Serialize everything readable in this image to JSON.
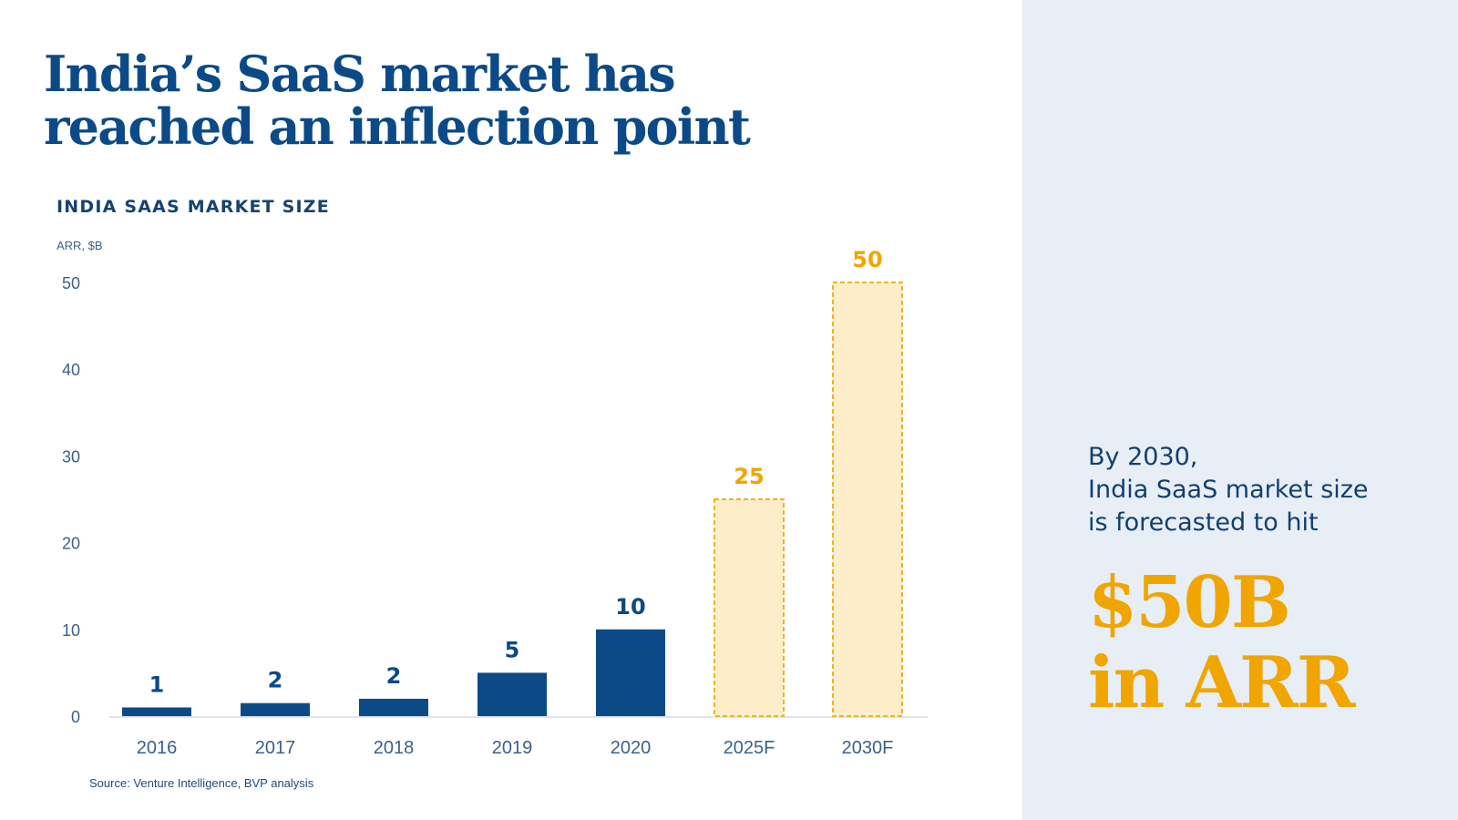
{
  "headline": {
    "line1": "India’s SaaS market has",
    "line2": "reached an inflection point"
  },
  "chart_title": "INDIA SAAS MARKET SIZE",
  "source": "Source: Venture Intelligence, BVP analysis",
  "callout": {
    "line1": "By 2030,",
    "line2": "India SaaS market size",
    "line3": "is forecasted to hit",
    "big1": "$50B",
    "big2": "in ARR"
  },
  "colors": {
    "actual_bar": "#0b4a87",
    "forecast_fill": "#fdeec9",
    "forecast_stroke": "#f2b21e",
    "forecast_label": "#f0a500",
    "axis_text": "#3a6189",
    "panel_bg": "#e8eef6"
  },
  "chart_data": {
    "type": "bar",
    "ylabel": "ARR, $B",
    "xlabel": "",
    "ylim": [
      0,
      50
    ],
    "yticks": [
      0,
      10,
      20,
      30,
      40,
      50
    ],
    "grid": false,
    "categories": [
      "2016",
      "2017",
      "2018",
      "2019",
      "2020",
      "2025F",
      "2030F"
    ],
    "values": [
      1,
      1.5,
      2,
      5,
      10,
      25,
      50
    ],
    "data_labels": [
      "1",
      "2",
      "2",
      "5",
      "10",
      "25",
      "50"
    ],
    "forecast": [
      false,
      false,
      false,
      false,
      false,
      true,
      true
    ]
  }
}
